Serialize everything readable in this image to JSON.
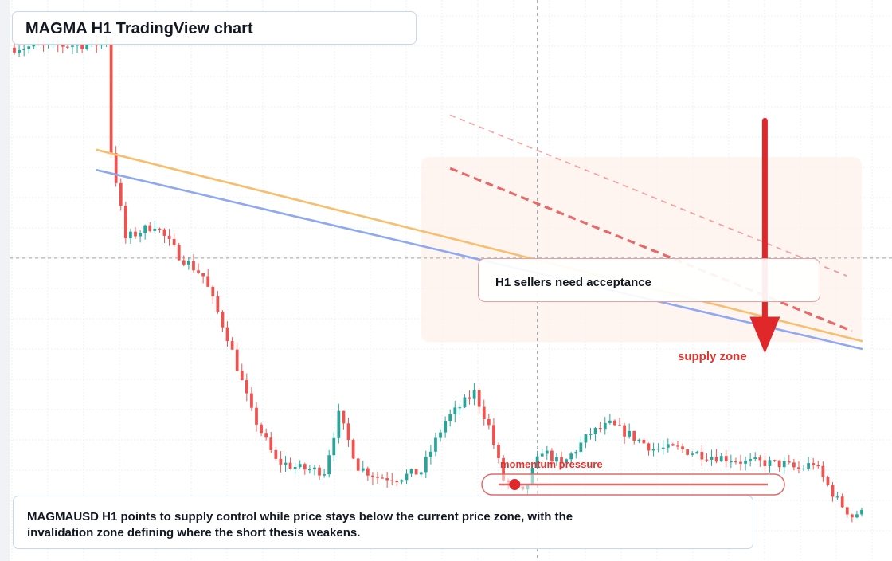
{
  "header": {
    "title": "MAGMA H1 TradingView chart"
  },
  "annotations": {
    "callout": "H1 sellers need acceptance",
    "supply_label": "supply zone",
    "momentum_label": "momentum pressure",
    "momentum_level": 0.06
  },
  "footer": {
    "text": "MAGMAUSD H1 points to supply control while price stays below the current price zone, with the invalidation zone defining where the short thesis weakens."
  },
  "colors": {
    "up": "#26a69a",
    "down": "#ef5350",
    "trend_orange": "#f7be6e",
    "trend_blue": "#8fa8f0",
    "resistance": "#e35d5d",
    "arrow": "#e0282a"
  },
  "chart_data": {
    "type": "candlestick",
    "symbol": "MAGMAUSD",
    "timeframe": "H1",
    "grid": true,
    "seed": 7,
    "candles": 176,
    "key_points": [
      [
        0,
        0.915
      ],
      [
        19,
        0.922
      ],
      [
        20,
        0.935
      ],
      [
        21,
        0.73
      ],
      [
        24,
        0.575
      ],
      [
        30,
        0.6
      ],
      [
        35,
        0.545
      ],
      [
        40,
        0.508
      ],
      [
        45,
        0.4
      ],
      [
        50,
        0.265
      ],
      [
        55,
        0.178
      ],
      [
        60,
        0.165
      ],
      [
        65,
        0.16
      ],
      [
        68,
        0.26
      ],
      [
        72,
        0.168
      ],
      [
        76,
        0.15
      ],
      [
        80,
        0.148
      ],
      [
        85,
        0.16
      ],
      [
        90,
        0.25
      ],
      [
        96,
        0.3
      ],
      [
        99,
        0.24
      ],
      [
        102,
        0.145
      ],
      [
        106,
        0.12
      ],
      [
        110,
        0.198
      ],
      [
        114,
        0.17
      ],
      [
        120,
        0.228
      ],
      [
        124,
        0.243
      ],
      [
        128,
        0.225
      ],
      [
        133,
        0.2
      ],
      [
        138,
        0.2
      ],
      [
        143,
        0.19
      ],
      [
        149,
        0.182
      ],
      [
        152,
        0.176
      ],
      [
        155,
        0.176
      ],
      [
        160,
        0.172
      ],
      [
        163,
        0.163
      ],
      [
        166,
        0.175
      ],
      [
        168,
        0.148
      ],
      [
        171,
        0.108
      ],
      [
        174,
        0.08
      ],
      [
        175,
        0.085
      ]
    ],
    "trendlines": [
      {
        "style": "orange",
        "from": [
          17,
          0.733
        ],
        "to": [
          175,
          0.392
        ]
      },
      {
        "style": "blue",
        "from": [
          17,
          0.697
        ],
        "to": [
          175,
          0.378
        ]
      }
    ],
    "resistance_lines": [
      {
        "style": "faint",
        "from": [
          90,
          0.795
        ],
        "to": [
          172,
          0.508
        ]
      },
      {
        "style": "dashed",
        "from": [
          90,
          0.7
        ],
        "to": [
          173,
          0.41
        ]
      }
    ],
    "supply_zone": {
      "from": 84,
      "to": 175,
      "top": 0.72,
      "bottom": 0.39
    },
    "arrow": {
      "x": 155,
      "from": 0.785,
      "to": 0.37,
      "direction": "down"
    },
    "crosshair": {
      "x": 108,
      "y": 0.54
    }
  }
}
